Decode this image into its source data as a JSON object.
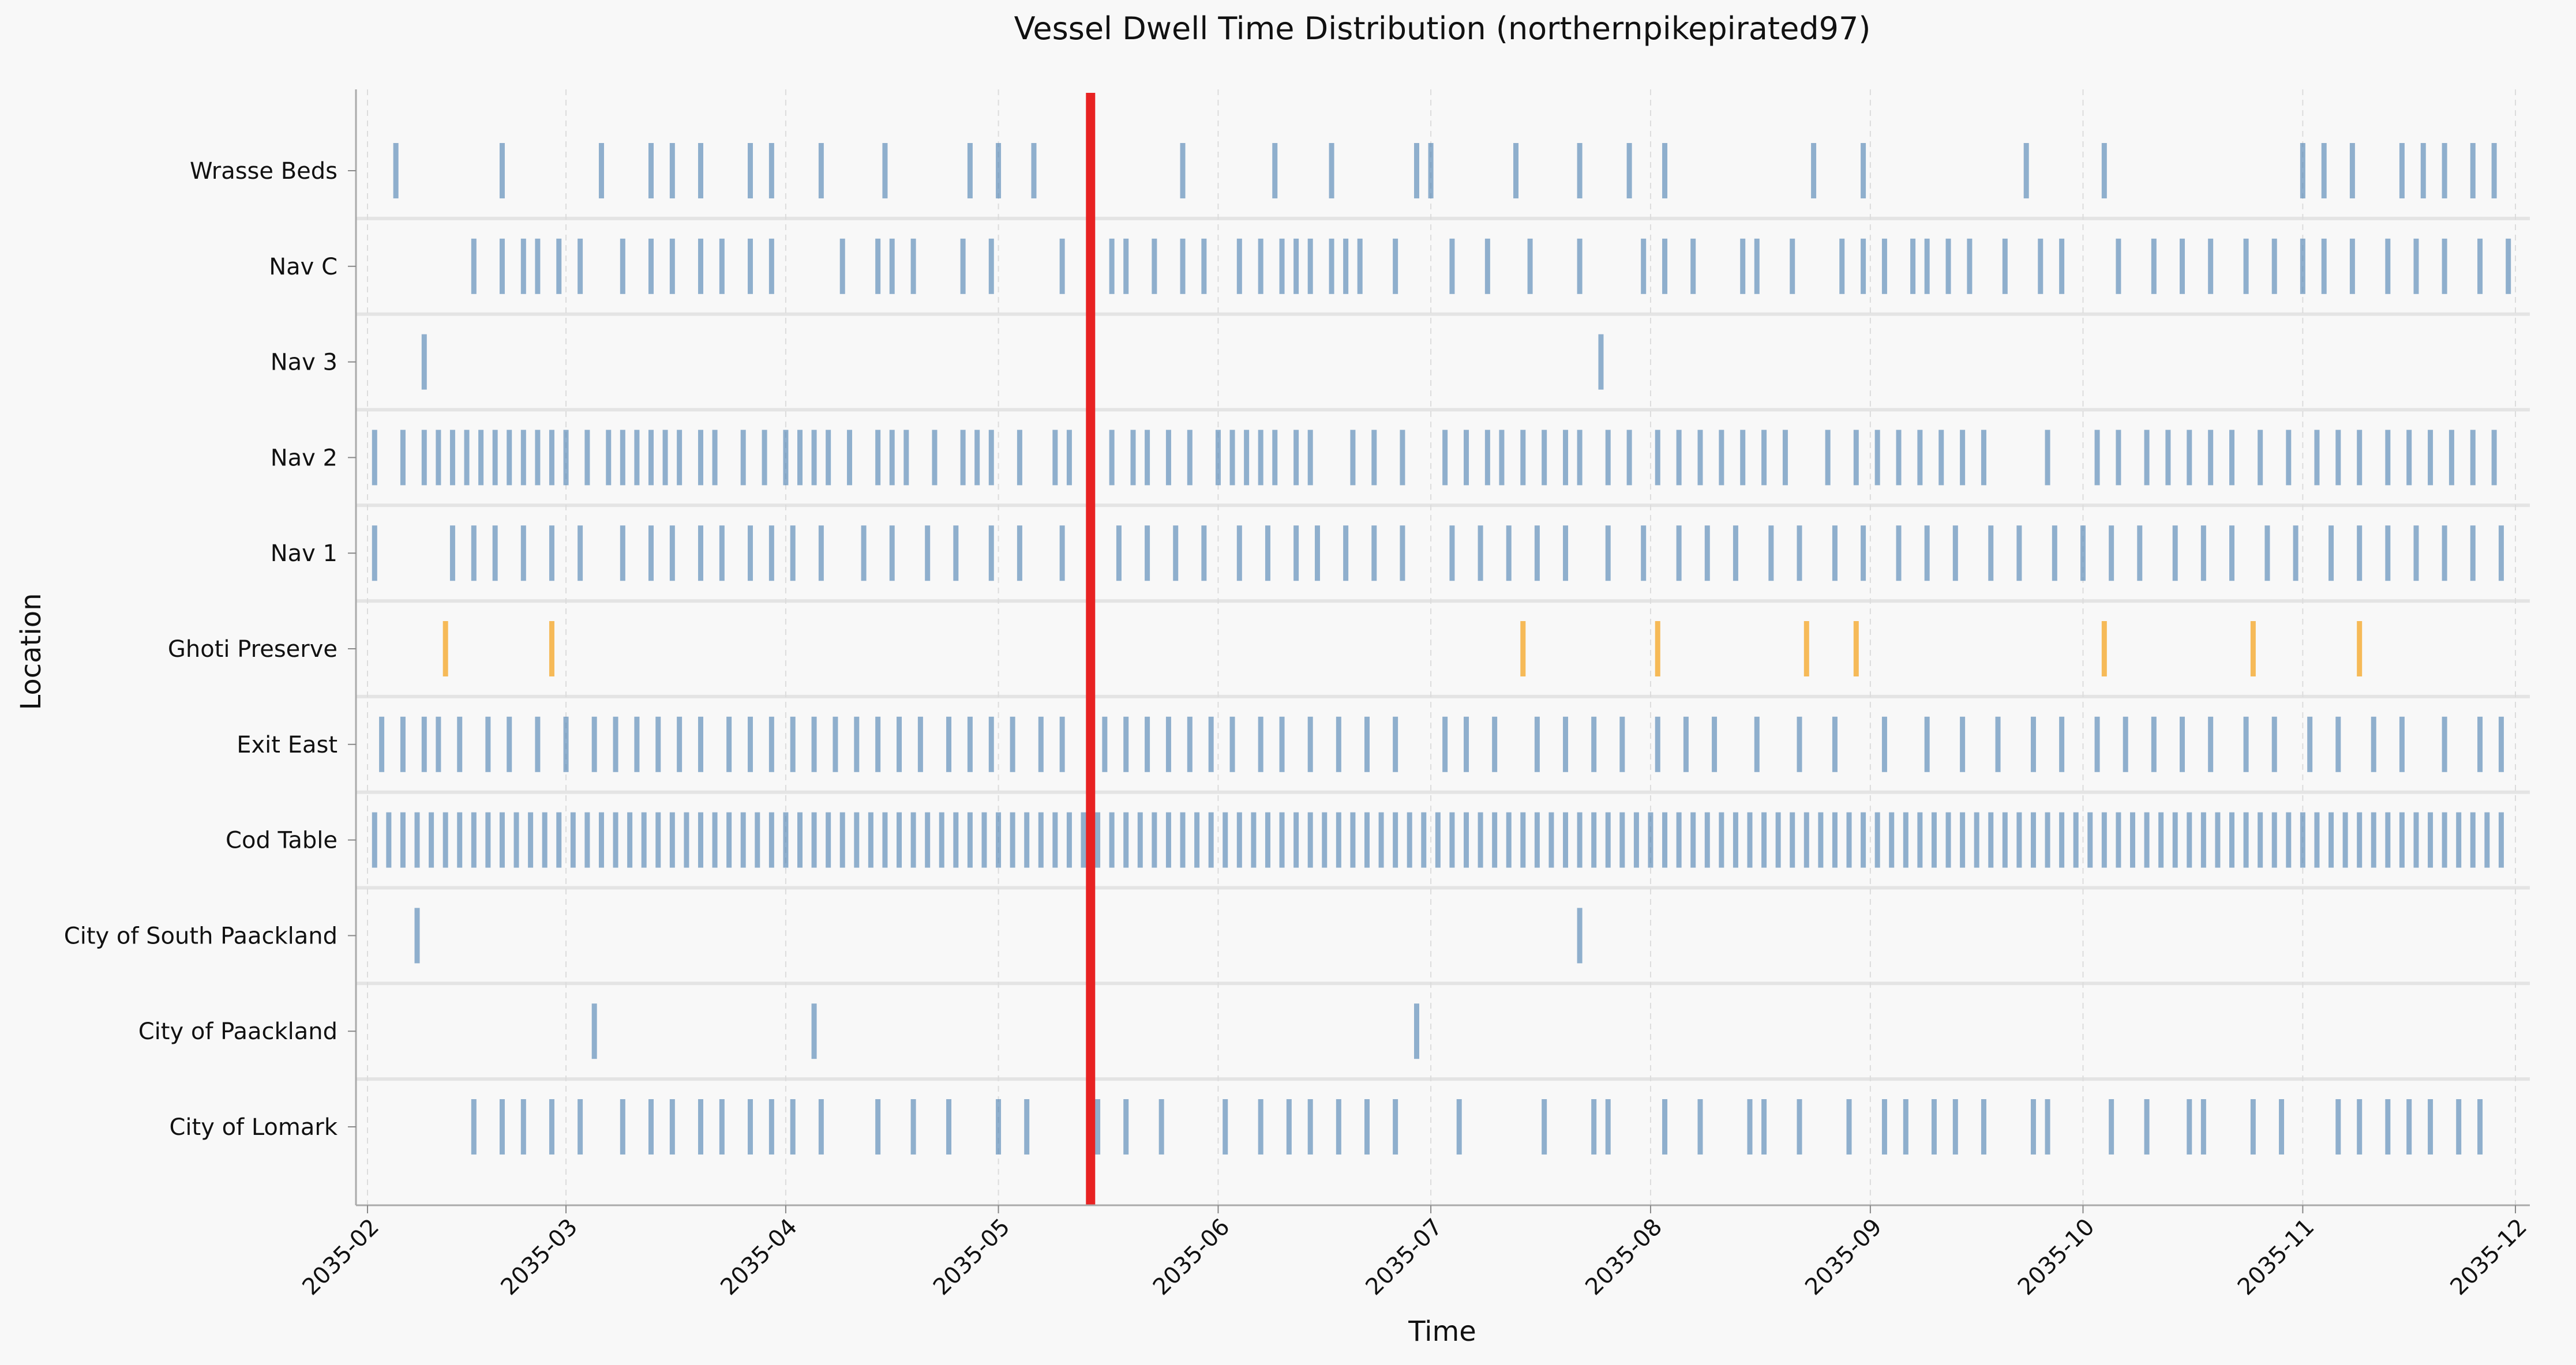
{
  "chart_data": {
    "type": "timeline",
    "title": "Vessel Dwell Time Distribution (northernpikepirated97)",
    "xlabel": "Time",
    "ylabel": "Location",
    "xlim": [
      "2035-01-31",
      "2035-12-01"
    ],
    "x_ticks": [
      "2035-02",
      "2035-03",
      "2035-04",
      "2035-05",
      "2035-06",
      "2035-07",
      "2035-08",
      "2035-09",
      "2035-10",
      "2035-11",
      "2035-12"
    ],
    "grid": true,
    "categories": [
      "Wrasse Beds",
      "Nav C",
      "Nav 3",
      "Nav 2",
      "Nav 1",
      "Ghoti Preserve",
      "Exit East",
      "Cod Table",
      "City of South Paackland",
      "City of Paackland",
      "City of Lomark"
    ],
    "colors": {
      "default": "#4a7fb0",
      "highlight": "#f5a623",
      "marker": "#e82222"
    },
    "reference_line": {
      "date": "2035-05-14",
      "color": "#e82222"
    },
    "series": [
      {
        "category": "Wrasse Beds",
        "color": "default",
        "events": [
          "2035-02-05",
          "2035-02-20",
          "2035-03-06",
          "2035-03-13",
          "2035-03-16",
          "2035-03-20",
          "2035-03-27",
          "2035-03-30",
          "2035-04-06",
          "2035-04-15",
          "2035-04-27",
          "2035-05-01",
          "2035-05-06",
          "2035-05-27",
          "2035-06-09",
          "2035-06-17",
          "2035-06-29",
          "2035-07-01",
          "2035-07-13",
          "2035-07-22",
          "2035-07-29",
          "2035-08-03",
          "2035-08-24",
          "2035-08-31",
          "2035-09-23",
          "2035-10-04",
          "2035-11-01",
          "2035-11-04",
          "2035-11-08",
          "2035-11-15",
          "2035-11-18",
          "2035-11-21",
          "2035-11-25",
          "2035-11-28"
        ]
      },
      {
        "category": "Nav C",
        "color": "default",
        "events": [
          "2035-02-16",
          "2035-02-20",
          "2035-02-23",
          "2035-02-25",
          "2035-02-28",
          "2035-03-03",
          "2035-03-09",
          "2035-03-13",
          "2035-03-16",
          "2035-03-20",
          "2035-03-23",
          "2035-03-27",
          "2035-03-30",
          "2035-04-09",
          "2035-04-14",
          "2035-04-16",
          "2035-04-19",
          "2035-04-26",
          "2035-04-30",
          "2035-05-10",
          "2035-05-14",
          "2035-05-17",
          "2035-05-19",
          "2035-05-23",
          "2035-05-27",
          "2035-05-30",
          "2035-06-04",
          "2035-06-07",
          "2035-06-10",
          "2035-06-12",
          "2035-06-14",
          "2035-06-17",
          "2035-06-19",
          "2035-06-21",
          "2035-06-26",
          "2035-07-04",
          "2035-07-09",
          "2035-07-15",
          "2035-07-22",
          "2035-07-31",
          "2035-08-03",
          "2035-08-07",
          "2035-08-14",
          "2035-08-16",
          "2035-08-21",
          "2035-08-28",
          "2035-08-31",
          "2035-09-03",
          "2035-09-07",
          "2035-09-09",
          "2035-09-12",
          "2035-09-15",
          "2035-09-20",
          "2035-09-25",
          "2035-09-28",
          "2035-10-06",
          "2035-10-11",
          "2035-10-15",
          "2035-10-19",
          "2035-10-24",
          "2035-10-28",
          "2035-11-01",
          "2035-11-04",
          "2035-11-08",
          "2035-11-13",
          "2035-11-17",
          "2035-11-21",
          "2035-11-26",
          "2035-11-30"
        ]
      },
      {
        "category": "Nav 3",
        "color": "default",
        "events": [
          "2035-02-09",
          "2035-07-25"
        ]
      },
      {
        "category": "Nav 2",
        "color": "default",
        "events": [
          "2035-02-02",
          "2035-02-06",
          "2035-02-09",
          "2035-02-11",
          "2035-02-13",
          "2035-02-15",
          "2035-02-17",
          "2035-02-19",
          "2035-02-21",
          "2035-02-23",
          "2035-02-25",
          "2035-02-27",
          "2035-03-01",
          "2035-03-04",
          "2035-03-07",
          "2035-03-09",
          "2035-03-11",
          "2035-03-13",
          "2035-03-15",
          "2035-03-17",
          "2035-03-20",
          "2035-03-22",
          "2035-03-26",
          "2035-03-29",
          "2035-04-01",
          "2035-04-03",
          "2035-04-05",
          "2035-04-07",
          "2035-04-10",
          "2035-04-14",
          "2035-04-16",
          "2035-04-18",
          "2035-04-22",
          "2035-04-26",
          "2035-04-28",
          "2035-04-30",
          "2035-05-04",
          "2035-05-09",
          "2035-05-11",
          "2035-05-17",
          "2035-05-20",
          "2035-05-22",
          "2035-05-25",
          "2035-05-28",
          "2035-06-01",
          "2035-06-03",
          "2035-06-05",
          "2035-06-07",
          "2035-06-09",
          "2035-06-12",
          "2035-06-14",
          "2035-06-20",
          "2035-06-23",
          "2035-06-27",
          "2035-07-03",
          "2035-07-06",
          "2035-07-09",
          "2035-07-11",
          "2035-07-14",
          "2035-07-17",
          "2035-07-20",
          "2035-07-22",
          "2035-07-26",
          "2035-07-29",
          "2035-08-02",
          "2035-08-05",
          "2035-08-08",
          "2035-08-11",
          "2035-08-14",
          "2035-08-17",
          "2035-08-20",
          "2035-08-26",
          "2035-08-30",
          "2035-09-02",
          "2035-09-05",
          "2035-09-08",
          "2035-09-11",
          "2035-09-14",
          "2035-09-17",
          "2035-09-26",
          "2035-10-03",
          "2035-10-06",
          "2035-10-10",
          "2035-10-13",
          "2035-10-16",
          "2035-10-19",
          "2035-10-22",
          "2035-10-26",
          "2035-10-30",
          "2035-11-03",
          "2035-11-06",
          "2035-11-09",
          "2035-11-13",
          "2035-11-16",
          "2035-11-19",
          "2035-11-22",
          "2035-11-25",
          "2035-11-28"
        ]
      },
      {
        "category": "Nav 1",
        "color": "default",
        "events": [
          "2035-02-02",
          "2035-02-13",
          "2035-02-16",
          "2035-02-19",
          "2035-02-23",
          "2035-02-27",
          "2035-03-03",
          "2035-03-09",
          "2035-03-13",
          "2035-03-16",
          "2035-03-20",
          "2035-03-23",
          "2035-03-27",
          "2035-03-30",
          "2035-04-02",
          "2035-04-06",
          "2035-04-12",
          "2035-04-16",
          "2035-04-21",
          "2035-04-25",
          "2035-04-30",
          "2035-05-04",
          "2035-05-10",
          "2035-05-14",
          "2035-05-18",
          "2035-05-22",
          "2035-05-26",
          "2035-05-30",
          "2035-06-04",
          "2035-06-08",
          "2035-06-12",
          "2035-06-15",
          "2035-06-19",
          "2035-06-23",
          "2035-06-27",
          "2035-07-04",
          "2035-07-08",
          "2035-07-12",
          "2035-07-16",
          "2035-07-20",
          "2035-07-26",
          "2035-07-31",
          "2035-08-05",
          "2035-08-09",
          "2035-08-13",
          "2035-08-18",
          "2035-08-22",
          "2035-08-27",
          "2035-08-31",
          "2035-09-05",
          "2035-09-09",
          "2035-09-13",
          "2035-09-18",
          "2035-09-22",
          "2035-09-27",
          "2035-10-01",
          "2035-10-05",
          "2035-10-09",
          "2035-10-14",
          "2035-10-18",
          "2035-10-22",
          "2035-10-27",
          "2035-10-31",
          "2035-11-05",
          "2035-11-09",
          "2035-11-13",
          "2035-11-17",
          "2035-11-21",
          "2035-11-25",
          "2035-11-29"
        ]
      },
      {
        "category": "Ghoti Preserve",
        "color": "highlight",
        "events": [
          "2035-02-12",
          "2035-02-27",
          "2035-07-14",
          "2035-08-02",
          "2035-08-23",
          "2035-08-30",
          "2035-10-04",
          "2035-10-25",
          "2035-11-09"
        ]
      },
      {
        "category": "Exit East",
        "color": "default",
        "events": [
          "2035-02-03",
          "2035-02-06",
          "2035-02-09",
          "2035-02-11",
          "2035-02-14",
          "2035-02-18",
          "2035-02-21",
          "2035-02-25",
          "2035-03-01",
          "2035-03-05",
          "2035-03-08",
          "2035-03-11",
          "2035-03-14",
          "2035-03-17",
          "2035-03-20",
          "2035-03-24",
          "2035-03-27",
          "2035-03-30",
          "2035-04-02",
          "2035-04-05",
          "2035-04-08",
          "2035-04-11",
          "2035-04-14",
          "2035-04-17",
          "2035-04-20",
          "2035-04-24",
          "2035-04-27",
          "2035-04-30",
          "2035-05-03",
          "2035-05-07",
          "2035-05-10",
          "2035-05-16",
          "2035-05-19",
          "2035-05-22",
          "2035-05-25",
          "2035-05-28",
          "2035-05-31",
          "2035-06-03",
          "2035-06-07",
          "2035-06-10",
          "2035-06-14",
          "2035-06-18",
          "2035-06-22",
          "2035-06-26",
          "2035-07-03",
          "2035-07-06",
          "2035-07-10",
          "2035-07-16",
          "2035-07-20",
          "2035-07-24",
          "2035-07-28",
          "2035-08-02",
          "2035-08-06",
          "2035-08-10",
          "2035-08-16",
          "2035-08-22",
          "2035-08-27",
          "2035-09-03",
          "2035-09-09",
          "2035-09-14",
          "2035-09-19",
          "2035-09-24",
          "2035-09-28",
          "2035-10-03",
          "2035-10-07",
          "2035-10-11",
          "2035-10-15",
          "2035-10-19",
          "2035-10-24",
          "2035-10-28",
          "2035-11-02",
          "2035-11-06",
          "2035-11-11",
          "2035-11-15",
          "2035-11-21",
          "2035-11-26",
          "2035-11-29"
        ]
      },
      {
        "category": "Cod Table",
        "color": "default",
        "events": [
          "2035-02-02",
          "2035-02-04",
          "2035-02-06",
          "2035-02-08",
          "2035-02-10",
          "2035-02-12",
          "2035-02-14",
          "2035-02-16",
          "2035-02-18",
          "2035-02-20",
          "2035-02-22",
          "2035-02-24",
          "2035-02-26",
          "2035-02-28",
          "2035-03-02",
          "2035-03-04",
          "2035-03-06",
          "2035-03-08",
          "2035-03-10",
          "2035-03-12",
          "2035-03-14",
          "2035-03-16",
          "2035-03-18",
          "2035-03-20",
          "2035-03-22",
          "2035-03-24",
          "2035-03-26",
          "2035-03-28",
          "2035-03-30",
          "2035-04-01",
          "2035-04-03",
          "2035-04-05",
          "2035-04-07",
          "2035-04-09",
          "2035-04-11",
          "2035-04-13",
          "2035-04-15",
          "2035-04-17",
          "2035-04-19",
          "2035-04-21",
          "2035-04-23",
          "2035-04-25",
          "2035-04-27",
          "2035-04-29",
          "2035-05-01",
          "2035-05-03",
          "2035-05-05",
          "2035-05-07",
          "2035-05-09",
          "2035-05-11",
          "2035-05-13",
          "2035-05-15",
          "2035-05-17",
          "2035-05-19",
          "2035-05-21",
          "2035-05-23",
          "2035-05-25",
          "2035-05-27",
          "2035-05-29",
          "2035-05-31",
          "2035-06-02",
          "2035-06-04",
          "2035-06-06",
          "2035-06-08",
          "2035-06-10",
          "2035-06-12",
          "2035-06-14",
          "2035-06-16",
          "2035-06-18",
          "2035-06-20",
          "2035-06-22",
          "2035-06-24",
          "2035-06-26",
          "2035-06-28",
          "2035-06-30",
          "2035-07-02",
          "2035-07-04",
          "2035-07-06",
          "2035-07-08",
          "2035-07-10",
          "2035-07-12",
          "2035-07-14",
          "2035-07-16",
          "2035-07-18",
          "2035-07-20",
          "2035-07-22",
          "2035-07-24",
          "2035-07-26",
          "2035-07-28",
          "2035-07-30",
          "2035-08-01",
          "2035-08-03",
          "2035-08-05",
          "2035-08-07",
          "2035-08-09",
          "2035-08-11",
          "2035-08-13",
          "2035-08-15",
          "2035-08-17",
          "2035-08-19",
          "2035-08-21",
          "2035-08-23",
          "2035-08-25",
          "2035-08-27",
          "2035-08-29",
          "2035-08-31",
          "2035-09-02",
          "2035-09-04",
          "2035-09-06",
          "2035-09-08",
          "2035-09-10",
          "2035-09-12",
          "2035-09-14",
          "2035-09-16",
          "2035-09-18",
          "2035-09-20",
          "2035-09-22",
          "2035-09-24",
          "2035-09-26",
          "2035-09-28",
          "2035-09-30",
          "2035-10-02",
          "2035-10-04",
          "2035-10-06",
          "2035-10-08",
          "2035-10-10",
          "2035-10-12",
          "2035-10-14",
          "2035-10-16",
          "2035-10-18",
          "2035-10-20",
          "2035-10-22",
          "2035-10-24",
          "2035-10-26",
          "2035-10-28",
          "2035-10-30",
          "2035-11-01",
          "2035-11-03",
          "2035-11-05",
          "2035-11-07",
          "2035-11-09",
          "2035-11-11",
          "2035-11-13",
          "2035-11-15",
          "2035-11-17",
          "2035-11-19",
          "2035-11-21",
          "2035-11-23",
          "2035-11-25",
          "2035-11-27",
          "2035-11-29"
        ]
      },
      {
        "category": "City of South Paackland",
        "color": "default",
        "events": [
          "2035-02-08",
          "2035-07-22"
        ]
      },
      {
        "category": "City of Paackland",
        "color": "default",
        "events": [
          "2035-03-05",
          "2035-04-05",
          "2035-06-29"
        ]
      },
      {
        "category": "City of Lomark",
        "color": "default",
        "events": [
          "2035-02-16",
          "2035-02-20",
          "2035-02-23",
          "2035-02-27",
          "2035-03-03",
          "2035-03-09",
          "2035-03-13",
          "2035-03-16",
          "2035-03-20",
          "2035-03-23",
          "2035-03-27",
          "2035-03-30",
          "2035-04-02",
          "2035-04-06",
          "2035-04-14",
          "2035-04-19",
          "2035-04-24",
          "2035-05-01",
          "2035-05-05",
          "2035-05-15",
          "2035-05-19",
          "2035-05-24",
          "2035-06-02",
          "2035-06-07",
          "2035-06-11",
          "2035-06-14",
          "2035-06-18",
          "2035-06-22",
          "2035-06-26",
          "2035-07-05",
          "2035-07-17",
          "2035-07-24",
          "2035-07-26",
          "2035-08-03",
          "2035-08-08",
          "2035-08-15",
          "2035-08-17",
          "2035-08-22",
          "2035-08-29",
          "2035-09-03",
          "2035-09-06",
          "2035-09-10",
          "2035-09-13",
          "2035-09-17",
          "2035-09-24",
          "2035-09-26",
          "2035-10-05",
          "2035-10-10",
          "2035-10-16",
          "2035-10-18",
          "2035-10-25",
          "2035-10-29",
          "2035-11-06",
          "2035-11-09",
          "2035-11-13",
          "2035-11-16",
          "2035-11-19",
          "2035-11-23",
          "2035-11-26"
        ]
      }
    ]
  }
}
